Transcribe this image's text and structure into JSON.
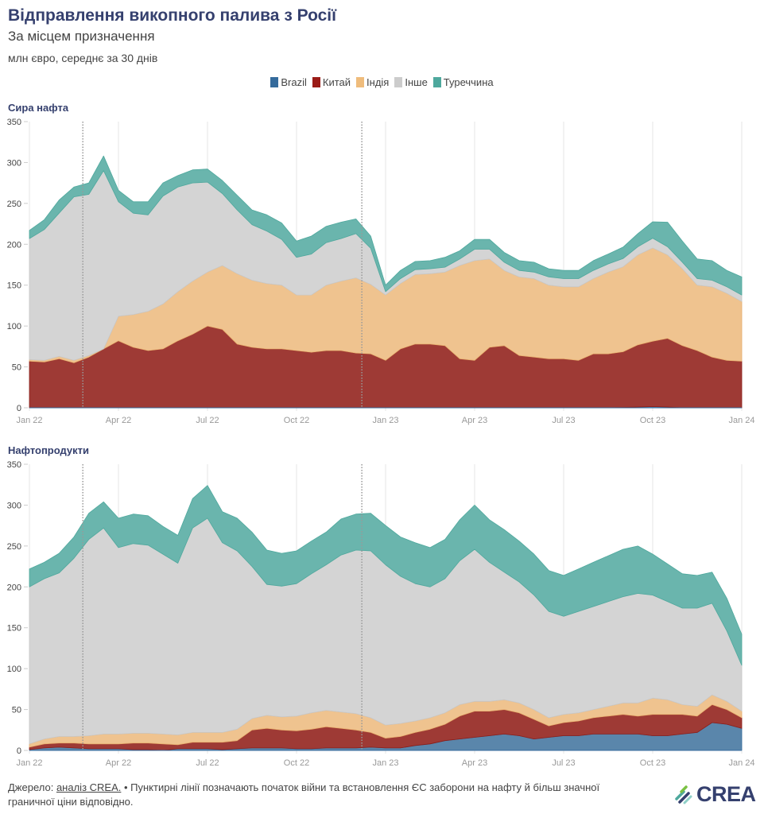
{
  "header": {
    "title": "Відправлення викопного палива з Росії",
    "subtitle": "За місцем призначення",
    "units": "млн євро, середнє за 30 днів"
  },
  "legend": [
    {
      "label": "Brazil",
      "color": "#356b9c"
    },
    {
      "label": "Китай",
      "color": "#9b1b17"
    },
    {
      "label": "Індія",
      "color": "#efbc7c"
    },
    {
      "label": "Інше",
      "color": "#cccccc"
    },
    {
      "label": "Туреччина",
      "color": "#4ea89d"
    }
  ],
  "footer": {
    "source_label": "Джерело: ",
    "source_link": "аналіз CREA.",
    "note": " • Пунктирні лінії позначають початок війни та встановлення ЄС заборони на нафту й більш значної граничної ціни відповідно."
  },
  "logo": {
    "text": "CREA"
  },
  "chart_data": [
    {
      "type": "area",
      "stacked": true,
      "title": "Сира нафта",
      "xlabel": "",
      "ylabel": "",
      "ylim": [
        0,
        350
      ],
      "yticks": [
        0,
        50,
        100,
        150,
        200,
        250,
        300,
        350
      ],
      "xtick_labels": [
        "Jan 22",
        "Apr 22",
        "Jul 22",
        "Oct 22",
        "Jan 23",
        "Apr 23",
        "Jul 23",
        "Oct 23",
        "Jan 24"
      ],
      "xtick_months": [
        0,
        3,
        6,
        9,
        12,
        15,
        18,
        21,
        24
      ],
      "vlines_months": [
        1.8,
        11.2
      ],
      "grid": "vertical",
      "legend": "top-center",
      "x_months": [
        0,
        0.5,
        1,
        1.5,
        2,
        2.5,
        3,
        3.5,
        4,
        4.5,
        5,
        5.5,
        6,
        6.5,
        7,
        7.5,
        8,
        8.5,
        9,
        9.5,
        10,
        10.5,
        11,
        11.5,
        12,
        12.5,
        13,
        13.5,
        14,
        14.5,
        15,
        15.5,
        16,
        16.5,
        17,
        17.5,
        18,
        18.5,
        19,
        19.5,
        20,
        20.5,
        21,
        21.5,
        22,
        22.5,
        23,
        23.5,
        24
      ],
      "series": [
        {
          "name": "Brazil",
          "values": [
            0,
            0,
            0,
            0,
            0,
            0,
            0,
            0,
            0,
            0,
            0,
            0,
            0,
            0,
            0,
            0,
            0,
            0,
            0,
            0,
            0,
            0,
            0,
            0,
            0,
            0,
            0,
            0,
            0,
            0,
            0,
            0,
            0,
            0,
            0,
            0,
            0,
            0,
            0,
            0,
            0.5,
            1,
            1.5,
            1,
            0,
            0,
            0,
            0,
            0
          ]
        },
        {
          "name": "Китай",
          "values": [
            57,
            56,
            60,
            55,
            62,
            72,
            82,
            74,
            70,
            72,
            82,
            90,
            100,
            96,
            78,
            74,
            72,
            72,
            70,
            68,
            70,
            70,
            67,
            66,
            58,
            72,
            78,
            78,
            76,
            60,
            58,
            74,
            76,
            64,
            62,
            60,
            60,
            58,
            66,
            66,
            68,
            76,
            80,
            84,
            76,
            70,
            62,
            58,
            57
          ]
        },
        {
          "name": "Індія",
          "values": [
            2,
            2,
            3,
            3,
            2,
            0,
            30,
            40,
            48,
            55,
            60,
            65,
            66,
            78,
            86,
            82,
            80,
            78,
            68,
            70,
            80,
            85,
            92,
            85,
            80,
            80,
            85,
            86,
            90,
            114,
            122,
            108,
            92,
            96,
            96,
            90,
            88,
            90,
            92,
            100,
            104,
            110,
            114,
            102,
            94,
            80,
            86,
            82,
            73
          ]
        },
        {
          "name": "Інше",
          "values": [
            148,
            160,
            175,
            200,
            197,
            218,
            140,
            124,
            118,
            132,
            128,
            120,
            110,
            88,
            78,
            68,
            64,
            56,
            46,
            50,
            52,
            52,
            54,
            44,
            4,
            6,
            6,
            6,
            6,
            8,
            14,
            12,
            10,
            8,
            8,
            10,
            10,
            10,
            10,
            10,
            10,
            10,
            12,
            10,
            8,
            8,
            8,
            8,
            8
          ]
        },
        {
          "name": "Туреччина",
          "values": [
            10,
            12,
            16,
            12,
            14,
            18,
            14,
            14,
            16,
            16,
            14,
            16,
            16,
            16,
            18,
            18,
            20,
            20,
            20,
            22,
            20,
            20,
            18,
            15,
            8,
            10,
            10,
            10,
            12,
            10,
            12,
            12,
            12,
            12,
            12,
            10,
            10,
            10,
            12,
            12,
            14,
            16,
            20,
            30,
            26,
            24,
            24,
            20,
            22
          ]
        }
      ]
    },
    {
      "type": "area",
      "stacked": true,
      "title": "Нафтопродукти",
      "xlabel": "",
      "ylabel": "",
      "ylim": [
        0,
        350
      ],
      "yticks": [
        0,
        50,
        100,
        150,
        200,
        250,
        300,
        350
      ],
      "xtick_labels": [
        "Jan 22",
        "Apr 22",
        "Jul 22",
        "Oct 22",
        "Jan 23",
        "Apr 23",
        "Jul 23",
        "Oct 23",
        "Jan 24"
      ],
      "xtick_months": [
        0,
        3,
        6,
        9,
        12,
        15,
        18,
        21,
        24
      ],
      "vlines_months": [
        1.8,
        11.2
      ],
      "grid": "vertical",
      "legend": "top-center",
      "x_months": [
        0,
        0.5,
        1,
        1.5,
        2,
        2.5,
        3,
        3.5,
        4,
        4.5,
        5,
        5.5,
        6,
        6.5,
        7,
        7.5,
        8,
        8.5,
        9,
        9.5,
        10,
        10.5,
        11,
        11.5,
        12,
        12.5,
        13,
        13.5,
        14,
        14.5,
        15,
        15.5,
        16,
        16.5,
        17,
        17.5,
        18,
        18.5,
        19,
        19.5,
        20,
        20.5,
        21,
        21.5,
        22,
        22.5,
        23,
        23.5,
        24
      ],
      "series": [
        {
          "name": "Brazil",
          "values": [
            1,
            3,
            4,
            3,
            2,
            2,
            2,
            1,
            1,
            0,
            2,
            2,
            2,
            1,
            2,
            3,
            3,
            3,
            2,
            2,
            3,
            3,
            3,
            4,
            3,
            3,
            6,
            8,
            12,
            14,
            16,
            18,
            20,
            18,
            14,
            16,
            18,
            18,
            20,
            20,
            20,
            20,
            18,
            18,
            20,
            22,
            34,
            32,
            27
          ]
        },
        {
          "name": "Китай",
          "values": [
            3,
            5,
            5,
            6,
            6,
            6,
            6,
            8,
            8,
            8,
            5,
            8,
            8,
            9,
            10,
            22,
            24,
            22,
            22,
            24,
            26,
            24,
            22,
            18,
            12,
            14,
            16,
            18,
            20,
            28,
            32,
            30,
            30,
            28,
            24,
            14,
            16,
            18,
            20,
            22,
            24,
            22,
            26,
            26,
            24,
            20,
            22,
            18,
            13
          ]
        },
        {
          "name": "Індія",
          "values": [
            4,
            6,
            8,
            8,
            10,
            12,
            12,
            12,
            12,
            12,
            12,
            12,
            12,
            12,
            14,
            14,
            16,
            16,
            18,
            20,
            20,
            20,
            20,
            18,
            16,
            16,
            14,
            14,
            14,
            14,
            12,
            12,
            12,
            12,
            12,
            10,
            10,
            10,
            10,
            12,
            14,
            16,
            20,
            18,
            12,
            12,
            12,
            10,
            8
          ]
        },
        {
          "name": "Інше",
          "values": [
            192,
            196,
            200,
            218,
            240,
            252,
            228,
            232,
            230,
            220,
            210,
            250,
            262,
            232,
            218,
            186,
            160,
            160,
            162,
            170,
            178,
            192,
            200,
            204,
            196,
            180,
            168,
            160,
            164,
            176,
            186,
            170,
            156,
            148,
            140,
            130,
            120,
            124,
            126,
            128,
            130,
            134,
            126,
            120,
            118,
            120,
            112,
            86,
            56
          ]
        },
        {
          "name": "Туреччина",
          "values": [
            22,
            20,
            24,
            26,
            32,
            32,
            36,
            36,
            36,
            34,
            34,
            36,
            40,
            38,
            40,
            42,
            42,
            40,
            40,
            40,
            40,
            44,
            44,
            46,
            48,
            48,
            50,
            48,
            48,
            50,
            54,
            52,
            52,
            50,
            50,
            50,
            50,
            52,
            54,
            56,
            58,
            58,
            50,
            46,
            42,
            40,
            38,
            40,
            38
          ]
        }
      ]
    }
  ]
}
